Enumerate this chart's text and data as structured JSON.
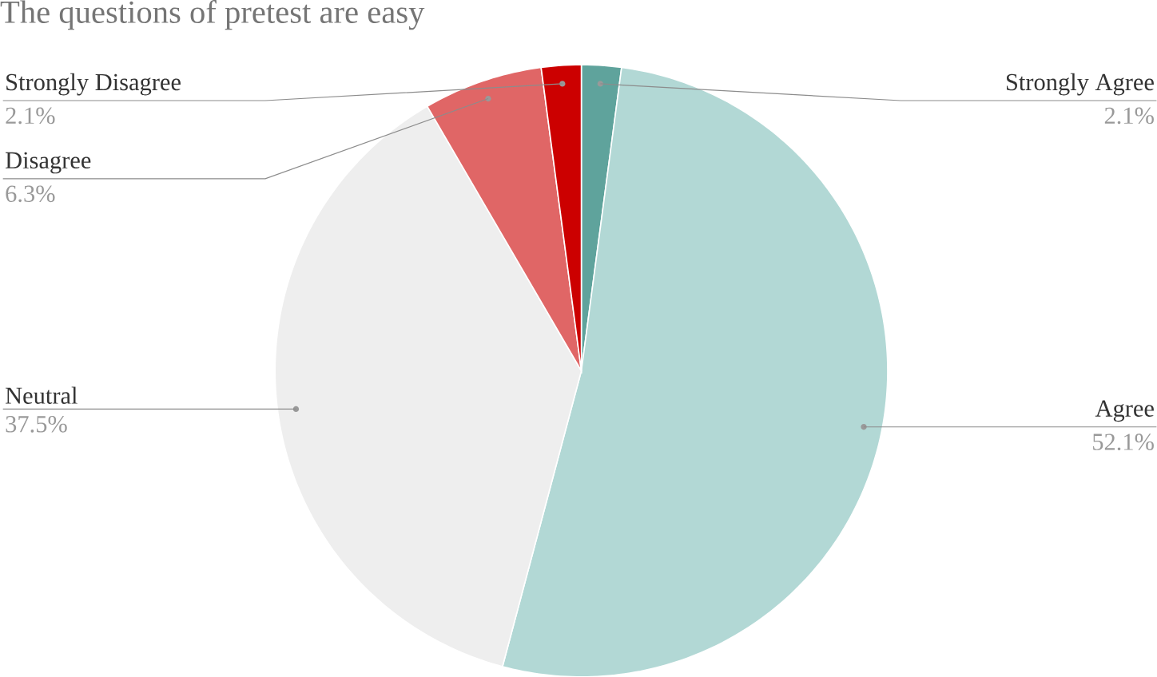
{
  "chart_data": {
    "type": "pie",
    "title": "The questions of pretest are easy",
    "categories": [
      "Strongly Agree",
      "Agree",
      "Neutral",
      "Disagree",
      "Strongly Disagree"
    ],
    "values": [
      2.1,
      52.1,
      37.5,
      6.3,
      2.1
    ],
    "value_labels": [
      "2.1%",
      "52.1%",
      "37.5%",
      "6.3%",
      "2.1%"
    ],
    "colors": [
      "#5fa39c",
      "#b2d8d5",
      "#eeeeee",
      "#e06666",
      "#cc0000"
    ]
  }
}
